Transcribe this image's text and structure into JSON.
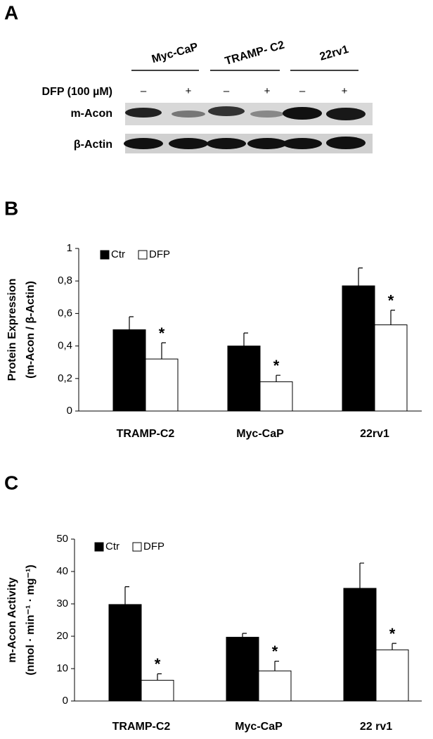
{
  "blot": {
    "label": "A",
    "groups": [
      "Myc-CaP",
      "TRAMP- C2",
      "22rv1"
    ],
    "rows": [
      "DFP (100 µM)",
      "m-Acon",
      "β-Actin"
    ],
    "lanes": [
      "–",
      "+",
      "–",
      "+",
      "–",
      "+"
    ]
  },
  "chart_data": [
    {
      "type": "bar",
      "label": "B",
      "ylabel": [
        "Protein Expression",
        "(m-Acon / β-Actin)"
      ],
      "categories": [
        "TRAMP-C2",
        "Myc-CaP",
        "22rv1"
      ],
      "series": [
        {
          "name": "Ctr",
          "color": "#000000",
          "values": [
            0.5,
            0.4,
            0.77
          ],
          "errors": [
            0.08,
            0.08,
            0.11
          ]
        },
        {
          "name": "DFP",
          "color": "#ffffff",
          "values": [
            0.32,
            0.18,
            0.53
          ],
          "errors": [
            0.1,
            0.04,
            0.09
          ],
          "annotations": [
            "*",
            "*",
            "*"
          ]
        }
      ],
      "ylim": [
        0,
        1
      ],
      "yticks": [
        0,
        {
          "value": 0.2,
          "label": "0,2"
        },
        {
          "value": 0.4,
          "label": "0,4"
        },
        {
          "value": 0.6,
          "label": "0,6"
        },
        {
          "value": 0.8,
          "label": "0,8"
        },
        1
      ],
      "legend": "top-left"
    },
    {
      "type": "bar",
      "label": "C",
      "ylabel": [
        "m-Acon Activity",
        "(nmol · min⁻¹ · mg⁻¹)"
      ],
      "categories": [
        "TRAMP-C2",
        "Myc-CaP",
        "22 rv1"
      ],
      "series": [
        {
          "name": "Ctr",
          "color": "#000000",
          "values": [
            29.8,
            19.7,
            34.8
          ],
          "errors": [
            5.5,
            1.2,
            7.8
          ]
        },
        {
          "name": "DFP",
          "color": "#ffffff",
          "values": [
            6.4,
            9.3,
            15.8
          ],
          "errors": [
            2.0,
            3.0,
            2.0
          ],
          "annotations": [
            "*",
            "*",
            "*"
          ]
        }
      ],
      "ylim": [
        0,
        50
      ],
      "yticks": [
        0,
        10,
        20,
        30,
        40,
        50
      ],
      "legend": "top-left"
    }
  ]
}
